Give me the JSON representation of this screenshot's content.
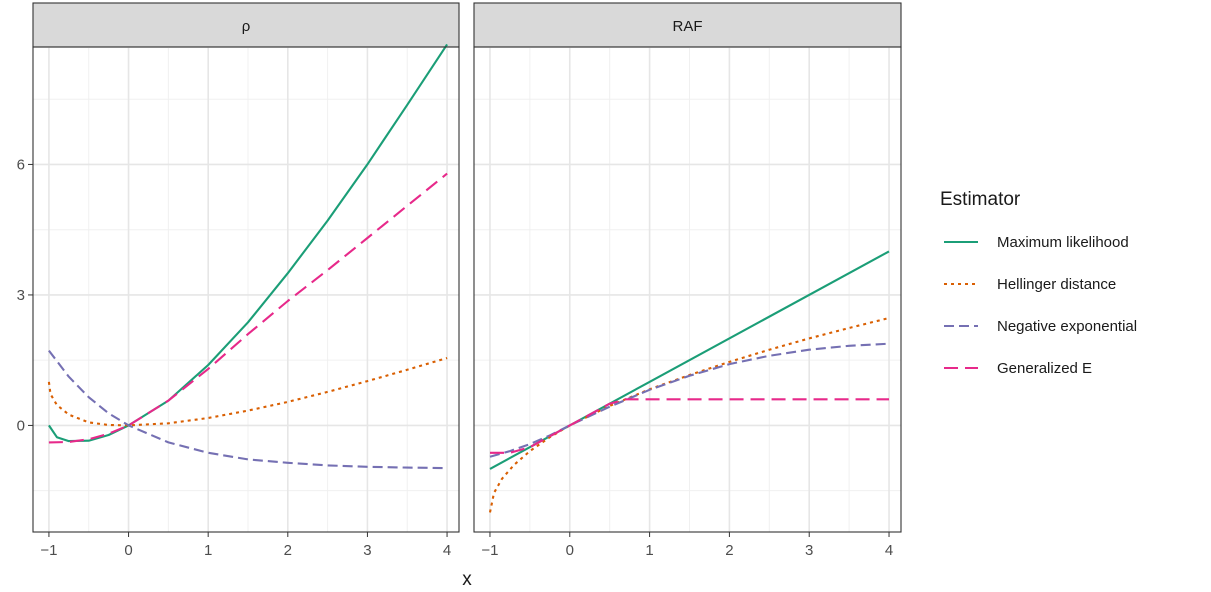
{
  "chart_data": {
    "type": "line",
    "xlabel": "x",
    "xlim": [
      -1.2,
      4.15
    ],
    "ylim": [
      -2.45,
      8.7
    ],
    "x_ticks": [
      -1,
      0,
      1,
      2,
      3,
      4
    ],
    "x_tick_labels": [
      "−1",
      "0",
      "1",
      "2",
      "3",
      "4"
    ],
    "y_ticks": [
      0,
      3,
      6
    ],
    "y_tick_labels": [
      "0",
      "3",
      "6"
    ],
    "grid": true,
    "legend": {
      "title": "Estimator",
      "position": "right",
      "entries": [
        {
          "label": "Maximum likelihood",
          "color": "#1b9e77",
          "dash": "solid"
        },
        {
          "label": "Hellinger distance",
          "color": "#d95f02",
          "dash": "dotted"
        },
        {
          "label": "Negative exponential",
          "color": "#7570b3",
          "dash": "dashed"
        },
        {
          "label": "Generalized E",
          "color": "#e7298a",
          "dash": "longdash"
        }
      ]
    },
    "panels": [
      {
        "strip": "ρ",
        "series": [
          {
            "name": "Maximum likelihood",
            "x": [
              -1,
              -0.9,
              -0.75,
              -0.5,
              -0.25,
              0,
              0.5,
              1,
              1.5,
              2,
              2.5,
              3,
              3.5,
              4
            ],
            "y": [
              0,
              -0.27,
              -0.36,
              -0.35,
              -0.22,
              0,
              0.57,
              1.39,
              2.37,
              3.5,
              4.71,
              6.0,
              7.37,
              8.76
            ]
          },
          {
            "name": "Hellinger distance",
            "x": [
              -1,
              -0.98,
              -0.9,
              -0.75,
              -0.5,
              -0.25,
              0,
              0.5,
              1,
              1.5,
              2,
              2.5,
              3,
              3.5,
              4
            ],
            "y": [
              1.0,
              0.72,
              0.47,
              0.25,
              0.07,
              0.01,
              0,
              0.05,
              0.17,
              0.34,
              0.54,
              0.77,
              1.02,
              1.28,
              1.55
            ]
          },
          {
            "name": "Negative exponential",
            "x": [
              -1,
              -0.75,
              -0.5,
              -0.25,
              0,
              0.5,
              1,
              1.5,
              2,
              2.5,
              3,
              3.5,
              4
            ],
            "y": [
              1.72,
              1.12,
              0.65,
              0.28,
              0,
              -0.39,
              -0.63,
              -0.78,
              -0.86,
              -0.92,
              -0.95,
              -0.97,
              -0.98
            ]
          },
          {
            "name": "Generalized E",
            "x": [
              -1,
              -0.75,
              -0.5,
              -0.25,
              0,
              0.5,
              1,
              1.5,
              2,
              2.5,
              3,
              3.5,
              4
            ],
            "y": [
              -0.39,
              -0.38,
              -0.32,
              -0.19,
              0,
              0.57,
              1.3,
              2.1,
              2.86,
              3.57,
              4.31,
              5.05,
              5.79
            ]
          }
        ]
      },
      {
        "strip": "RAF",
        "series": [
          {
            "name": "Maximum likelihood",
            "x": [
              -1,
              4
            ],
            "y": [
              -1,
              4
            ]
          },
          {
            "name": "Hellinger distance",
            "x": [
              -1,
              -0.95,
              -0.85,
              -0.7,
              -0.5,
              -0.25,
              0,
              0.5,
              1,
              1.5,
              2,
              2.5,
              3,
              3.5,
              4
            ],
            "y": [
              -2,
              -1.55,
              -1.23,
              -0.91,
              -0.59,
              -0.27,
              0,
              0.45,
              0.83,
              1.16,
              1.46,
              1.74,
              2.0,
              2.24,
              2.47
            ]
          },
          {
            "name": "Negative exponential",
            "x": [
              -1,
              -0.75,
              -0.5,
              -0.25,
              0,
              0.5,
              1,
              1.5,
              2,
              2.5,
              3,
              3.5,
              4
            ],
            "y": [
              -0.72,
              -0.59,
              -0.43,
              -0.23,
              0,
              0.43,
              0.82,
              1.14,
              1.41,
              1.6,
              1.74,
              1.83,
              1.88
            ]
          },
          {
            "name": "Generalized E",
            "x": [
              -1,
              -0.75,
              -0.5,
              -0.25,
              0,
              0.25,
              0.5,
              0.7,
              1,
              2,
              3,
              4
            ],
            "y": [
              -0.63,
              -0.63,
              -0.5,
              -0.25,
              0,
              0.25,
              0.5,
              0.6,
              0.6,
              0.6,
              0.6,
              0.6
            ]
          }
        ]
      }
    ]
  }
}
